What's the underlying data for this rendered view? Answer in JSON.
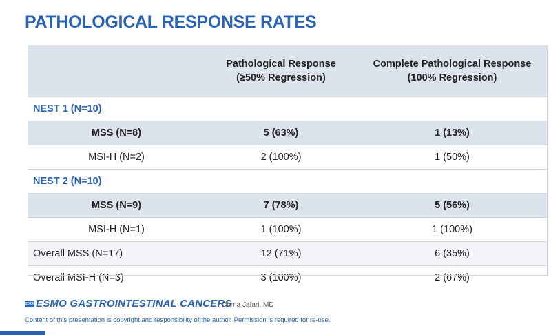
{
  "title": "PATHOLOGICAL RESPONSE RATES",
  "table": {
    "headers": {
      "pr_line1": "Pathological Response",
      "pr_line2": "(≥50% Regression)",
      "cpr_line1": "Complete Pathological Response",
      "cpr_line2": "(100% Regression)"
    },
    "nest1": {
      "label": "NEST 1 (N=10)",
      "mss": {
        "label": "MSS (N=8)",
        "pr": "5 (63%)",
        "cpr": "1 (13%)"
      },
      "msih": {
        "label": "MSI-H (N=2)",
        "pr": "2 (100%)",
        "cpr": "1 (50%)"
      }
    },
    "nest2": {
      "label": "NEST 2 (N=10)",
      "mss": {
        "label": "MSS (N=9)",
        "pr": "7 (78%)",
        "cpr": "5 (56%)"
      },
      "msih": {
        "label": "MSI-H (N=1)",
        "pr": "1 (100%)",
        "cpr": "1 (100%)"
      }
    },
    "overall_mss": {
      "label": "Overall MSS (N=17)",
      "pr": "12 (71%)",
      "cpr": "6 (35%)"
    },
    "overall_msih": {
      "label": "Overall MSI-H (N=3)",
      "pr": "3 (100%)",
      "cpr": "2 (67%)"
    }
  },
  "footer": {
    "logo_badge": "2024",
    "logo_text": "ESMO GASTROINTESTINAL CANCERS",
    "presenter": "Dorna Jafari, MD",
    "copyright": "Content of this presentation is copyright and responsibility of the author. Permission is required for re-use."
  },
  "colors": {
    "accent": "#2b63b3",
    "header_bg": "#dde3ec"
  }
}
